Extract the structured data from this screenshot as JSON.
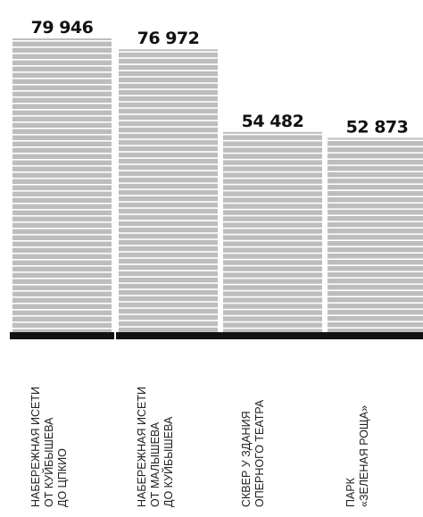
{
  "chart_data": {
    "type": "bar",
    "title": "",
    "xlabel": "",
    "ylabel": "",
    "ylim": [
      0,
      79946
    ],
    "grid": false,
    "categories": [
      [
        "НАБЕРЕЖНАЯ ИСЕТИ",
        "ОТ КУЙБЫШЕВА",
        "ДО ЦПКИО"
      ],
      [
        "НАБЕРЕЖНАЯ ИСЕТИ",
        "ОТ МАЛЫШЕВА",
        "ДО КУЙБЫШЕВА"
      ],
      [
        "СКВЕР У ЗДАНИЯ",
        "ОПЕРНОГО ТЕАТРА"
      ],
      [
        "ПАРК",
        "«ЗЕЛЕНАЯ РОЩА»"
      ]
    ],
    "values": [
      79946,
      76972,
      54482,
      52873
    ],
    "value_labels": [
      "79 946",
      "76 972",
      "54 482",
      "52 873"
    ],
    "colors": {
      "bar_stripe": "#bdbdbd",
      "bar_gap": "#ffffff",
      "baseline": "#111111",
      "text": "#111111"
    }
  }
}
